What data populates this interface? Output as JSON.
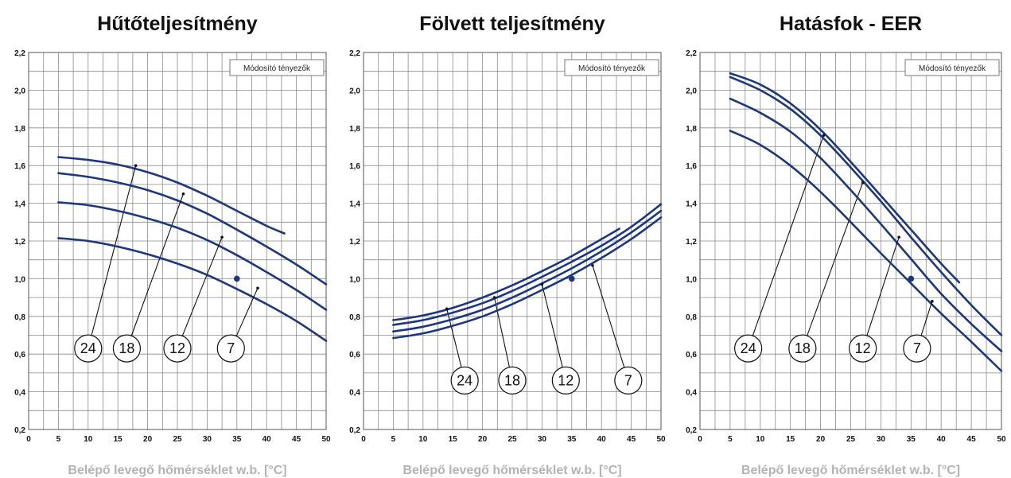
{
  "chart_data": [
    {
      "type": "line",
      "title": "Hűtőteljesítmény",
      "xlabel": "Belépő levegő hőmérséklet w.b.  [°C]",
      "legend_box": "Módosító tényezők",
      "xlim": [
        0,
        50
      ],
      "ylim": [
        0.2,
        2.2
      ],
      "xticks": [
        "0",
        "5",
        "10",
        "15",
        "20",
        "25",
        "30",
        "35",
        "40",
        "45",
        "50"
      ],
      "yticks": [
        "0,2",
        "0,4",
        "0,6",
        "0,8",
        "1,0",
        "1,2",
        "1,4",
        "1,6",
        "1,8",
        "2,0",
        "2,2"
      ],
      "reference_point": [
        35,
        1.0
      ],
      "series": [
        {
          "name": "24",
          "x": [
            5,
            10,
            15,
            20,
            25,
            30,
            35,
            40,
            43
          ],
          "y": [
            1.645,
            1.63,
            1.605,
            1.565,
            1.51,
            1.44,
            1.36,
            1.28,
            1.24
          ],
          "marker": [
            18,
            1.6
          ],
          "label_pos": [
            10,
            0.63
          ]
        },
        {
          "name": "18",
          "x": [
            5,
            10,
            15,
            20,
            25,
            30,
            35,
            40,
            45,
            50
          ],
          "y": [
            1.56,
            1.54,
            1.51,
            1.47,
            1.415,
            1.345,
            1.26,
            1.17,
            1.075,
            0.97
          ],
          "marker": [
            26,
            1.45
          ],
          "label_pos": [
            16.5,
            0.63
          ]
        },
        {
          "name": "12",
          "x": [
            5,
            10,
            15,
            20,
            25,
            30,
            35,
            40,
            45,
            50
          ],
          "y": [
            1.405,
            1.39,
            1.36,
            1.32,
            1.27,
            1.205,
            1.125,
            1.035,
            0.94,
            0.835
          ],
          "marker": [
            32.5,
            1.22
          ],
          "label_pos": [
            25,
            0.63
          ]
        },
        {
          "name": "7",
          "x": [
            5,
            10,
            15,
            20,
            25,
            30,
            35,
            40,
            45,
            50
          ],
          "y": [
            1.215,
            1.2,
            1.17,
            1.13,
            1.08,
            1.02,
            0.945,
            0.865,
            0.775,
            0.67
          ],
          "marker": [
            38.5,
            0.95
          ],
          "label_pos": [
            34,
            0.63
          ]
        }
      ]
    },
    {
      "type": "line",
      "title": "Fölvett teljesítmény",
      "xlabel": "Belépő levegő hőmérséklet w.b.  [°C]",
      "legend_box": "Módosító tényezők",
      "xlim": [
        0,
        50
      ],
      "ylim": [
        0.2,
        2.2
      ],
      "xticks": [
        "0",
        "5",
        "10",
        "15",
        "20",
        "25",
        "30",
        "35",
        "40",
        "45",
        "50"
      ],
      "yticks": [
        "0,2",
        "0,4",
        "0,6",
        "0,8",
        "1,0",
        "1,2",
        "1,4",
        "1,6",
        "1,8",
        "2,0",
        "2,2"
      ],
      "reference_point": [
        35,
        1.0
      ],
      "series": [
        {
          "name": "24",
          "x": [
            5,
            10,
            15,
            20,
            25,
            30,
            35,
            40,
            43
          ],
          "y": [
            0.78,
            0.805,
            0.845,
            0.9,
            0.965,
            1.04,
            1.12,
            1.21,
            1.265
          ],
          "marker": [
            14,
            0.84
          ],
          "label_pos": [
            17,
            0.46
          ]
        },
        {
          "name": "18",
          "x": [
            5,
            10,
            15,
            20,
            25,
            30,
            35,
            40,
            45,
            50
          ],
          "y": [
            0.755,
            0.78,
            0.82,
            0.87,
            0.935,
            1.01,
            1.09,
            1.175,
            1.275,
            1.395
          ],
          "marker": [
            22,
            0.9
          ],
          "label_pos": [
            25,
            0.46
          ]
        },
        {
          "name": "12",
          "x": [
            5,
            10,
            15,
            20,
            25,
            30,
            35,
            40,
            45,
            50
          ],
          "y": [
            0.72,
            0.745,
            0.785,
            0.835,
            0.9,
            0.975,
            1.055,
            1.145,
            1.245,
            1.36
          ],
          "marker": [
            30,
            0.97
          ],
          "label_pos": [
            34,
            0.46
          ]
        },
        {
          "name": "7",
          "x": [
            5,
            10,
            15,
            20,
            25,
            30,
            35,
            40,
            45,
            50
          ],
          "y": [
            0.685,
            0.71,
            0.75,
            0.8,
            0.865,
            0.94,
            1.02,
            1.11,
            1.21,
            1.325
          ],
          "marker": [
            38.5,
            1.07
          ],
          "label_pos": [
            44.5,
            0.46
          ]
        }
      ]
    },
    {
      "type": "line",
      "title": "Hatásfok - EER",
      "xlabel": "Belépő levegő hőmérséklet w.b.  [°C]",
      "legend_box": "Módosító tényezők",
      "xlim": [
        0,
        50
      ],
      "ylim": [
        0.2,
        2.2
      ],
      "xticks": [
        "0",
        "5",
        "10",
        "15",
        "20",
        "25",
        "30",
        "35",
        "40",
        "45",
        "50"
      ],
      "yticks": [
        "0,2",
        "0,4",
        "0,6",
        "0,8",
        "1,0",
        "1,2",
        "1,4",
        "1,6",
        "1,8",
        "2,0",
        "2,2"
      ],
      "reference_point": [
        35,
        1.0
      ],
      "series": [
        {
          "name": "24",
          "x": [
            5,
            10,
            15,
            20,
            25,
            30,
            35,
            40,
            43
          ],
          "y": [
            2.09,
            2.03,
            1.93,
            1.79,
            1.62,
            1.44,
            1.26,
            1.08,
            0.98
          ],
          "marker": [
            20.5,
            1.76
          ],
          "label_pos": [
            8,
            0.63
          ]
        },
        {
          "name": "18",
          "x": [
            5,
            10,
            15,
            20,
            25,
            30,
            35,
            40,
            45,
            50
          ],
          "y": [
            2.07,
            2.0,
            1.9,
            1.76,
            1.59,
            1.41,
            1.22,
            1.035,
            0.86,
            0.7
          ],
          "marker": [
            27,
            1.51
          ],
          "label_pos": [
            17,
            0.63
          ]
        },
        {
          "name": "12",
          "x": [
            5,
            10,
            15,
            20,
            25,
            30,
            35,
            40,
            45,
            50
          ],
          "y": [
            1.955,
            1.88,
            1.78,
            1.64,
            1.47,
            1.29,
            1.105,
            0.92,
            0.76,
            0.615
          ],
          "marker": [
            33,
            1.22
          ],
          "label_pos": [
            27,
            0.63
          ]
        },
        {
          "name": "7",
          "x": [
            5,
            10,
            15,
            20,
            25,
            30,
            35,
            40,
            45,
            50
          ],
          "y": [
            1.785,
            1.71,
            1.6,
            1.46,
            1.3,
            1.135,
            0.975,
            0.815,
            0.665,
            0.51
          ],
          "marker": [
            38.5,
            0.88
          ],
          "label_pos": [
            36,
            0.63
          ]
        }
      ]
    }
  ]
}
